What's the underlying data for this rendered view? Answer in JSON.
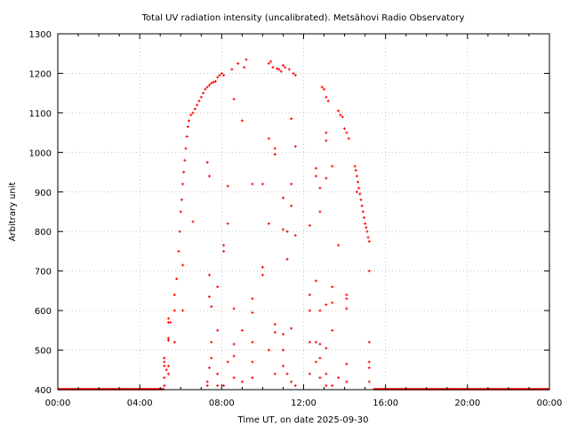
{
  "chart_data": {
    "type": "scatter",
    "title": "Total UV radiation intensity (uncalibrated). Metsähovi Radio Observatory",
    "xlabel": "Time UT, on date 2025-09-30",
    "ylabel": "Arbitrary unit",
    "xlim": [
      0,
      24
    ],
    "ylim": [
      400,
      1300
    ],
    "x_unit": "hours UT",
    "xticks": [
      0,
      4,
      8,
      12,
      16,
      20,
      24
    ],
    "xtick_labels": [
      "00:00",
      "04:00",
      "08:00",
      "12:00",
      "16:00",
      "20:00",
      "00:00"
    ],
    "yticks": [
      400,
      500,
      600,
      700,
      800,
      900,
      1000,
      1100,
      1200,
      1300
    ],
    "ytick_labels": [
      "400",
      "500",
      "600",
      "700",
      "800",
      "900",
      "1000",
      "1100",
      "1200",
      "1300"
    ],
    "grid": true,
    "color": "#ff0000",
    "baseline_segments": [
      [
        0,
        5.2,
        400
      ],
      [
        15.4,
        24,
        400
      ]
    ],
    "points": [
      [
        5.3,
        450
      ],
      [
        5.5,
        570
      ],
      [
        5.7,
        600
      ],
      [
        5.8,
        680
      ],
      [
        5.9,
        750
      ],
      [
        5.95,
        800
      ],
      [
        6.0,
        850
      ],
      [
        6.05,
        880
      ],
      [
        6.1,
        920
      ],
      [
        6.15,
        950
      ],
      [
        6.2,
        980
      ],
      [
        6.25,
        1010
      ],
      [
        6.3,
        1040
      ],
      [
        6.35,
        1065
      ],
      [
        6.4,
        1080
      ],
      [
        6.5,
        1095
      ],
      [
        6.6,
        1100
      ],
      [
        6.7,
        1110
      ],
      [
        6.8,
        1120
      ],
      [
        6.9,
        1130
      ],
      [
        7.0,
        1140
      ],
      [
        7.1,
        1150
      ],
      [
        7.2,
        1160
      ],
      [
        7.3,
        1165
      ],
      [
        7.4,
        1170
      ],
      [
        7.5,
        1175
      ],
      [
        7.6,
        1178
      ],
      [
        7.7,
        1180
      ],
      [
        7.8,
        1190
      ],
      [
        7.9,
        1195
      ],
      [
        8.0,
        1200
      ],
      [
        8.1,
        1195
      ],
      [
        8.5,
        1210
      ],
      [
        8.8,
        1225
      ],
      [
        9.2,
        1235
      ],
      [
        9.1,
        1215
      ],
      [
        10.3,
        1225
      ],
      [
        10.4,
        1230
      ],
      [
        10.5,
        1215
      ],
      [
        10.7,
        1212
      ],
      [
        10.8,
        1210
      ],
      [
        10.9,
        1205
      ],
      [
        11.0,
        1220
      ],
      [
        11.1,
        1215
      ],
      [
        11.3,
        1210
      ],
      [
        11.5,
        1200
      ],
      [
        11.6,
        1195
      ],
      [
        12.9,
        1165
      ],
      [
        13.0,
        1160
      ],
      [
        13.1,
        1140
      ],
      [
        13.2,
        1130
      ],
      [
        13.7,
        1105
      ],
      [
        13.8,
        1095
      ],
      [
        13.9,
        1090
      ],
      [
        14.0,
        1060
      ],
      [
        14.1,
        1050
      ],
      [
        14.2,
        1035
      ],
      [
        14.5,
        965
      ],
      [
        14.55,
        955
      ],
      [
        14.6,
        940
      ],
      [
        14.65,
        925
      ],
      [
        14.7,
        910
      ],
      [
        14.75,
        895
      ],
      [
        14.8,
        880
      ],
      [
        14.85,
        865
      ],
      [
        14.9,
        850
      ],
      [
        14.95,
        835
      ],
      [
        15.0,
        820
      ],
      [
        15.05,
        810
      ],
      [
        15.1,
        800
      ],
      [
        15.15,
        785
      ],
      [
        15.2,
        775
      ],
      [
        5.2,
        480
      ],
      [
        5.2,
        470
      ],
      [
        5.2,
        460
      ],
      [
        5.2,
        430
      ],
      [
        5.2,
        410
      ],
      [
        5.4,
        580
      ],
      [
        5.4,
        570
      ],
      [
        5.4,
        530
      ],
      [
        5.4,
        525
      ],
      [
        5.4,
        460
      ],
      [
        5.4,
        440
      ],
      [
        5.7,
        640
      ],
      [
        5.7,
        520
      ],
      [
        6.1,
        715
      ],
      [
        6.1,
        600
      ],
      [
        6.6,
        825
      ],
      [
        7.3,
        975
      ],
      [
        7.3,
        420
      ],
      [
        7.3,
        410
      ],
      [
        7.4,
        940
      ],
      [
        7.4,
        690
      ],
      [
        7.4,
        635
      ],
      [
        7.4,
        455
      ],
      [
        7.5,
        610
      ],
      [
        7.5,
        520
      ],
      [
        7.5,
        480
      ],
      [
        7.8,
        660
      ],
      [
        7.8,
        550
      ],
      [
        7.8,
        440
      ],
      [
        7.8,
        410
      ],
      [
        8.1,
        765
      ],
      [
        8.1,
        750
      ],
      [
        8.1,
        410
      ],
      [
        8.3,
        915
      ],
      [
        8.3,
        820
      ],
      [
        8.3,
        470
      ],
      [
        8.6,
        1135
      ],
      [
        8.6,
        605
      ],
      [
        8.6,
        485
      ],
      [
        8.6,
        515
      ],
      [
        8.6,
        430
      ],
      [
        9.0,
        1080
      ],
      [
        9.0,
        550
      ],
      [
        9.0,
        420
      ],
      [
        9.5,
        920
      ],
      [
        9.5,
        630
      ],
      [
        9.5,
        595
      ],
      [
        9.5,
        520
      ],
      [
        9.5,
        470
      ],
      [
        9.5,
        430
      ],
      [
        10.0,
        920
      ],
      [
        10.0,
        710
      ],
      [
        10.0,
        690
      ],
      [
        10.3,
        1035
      ],
      [
        10.3,
        820
      ],
      [
        10.3,
        500
      ],
      [
        10.6,
        1010
      ],
      [
        10.6,
        995
      ],
      [
        10.6,
        565
      ],
      [
        10.6,
        545
      ],
      [
        10.6,
        440
      ],
      [
        11.0,
        885
      ],
      [
        11.0,
        805
      ],
      [
        11.0,
        540
      ],
      [
        11.0,
        500
      ],
      [
        11.0,
        460
      ],
      [
        11.2,
        730
      ],
      [
        11.2,
        800
      ],
      [
        11.2,
        440
      ],
      [
        11.4,
        1085
      ],
      [
        11.4,
        920
      ],
      [
        11.4,
        865
      ],
      [
        11.4,
        555
      ],
      [
        11.4,
        420
      ],
      [
        11.6,
        1015
      ],
      [
        11.6,
        790
      ],
      [
        11.6,
        410
      ],
      [
        12.3,
        815
      ],
      [
        12.3,
        640
      ],
      [
        12.3,
        600
      ],
      [
        12.3,
        520
      ],
      [
        12.3,
        440
      ],
      [
        12.6,
        960
      ],
      [
        12.6,
        940
      ],
      [
        12.6,
        675
      ],
      [
        12.6,
        520
      ],
      [
        12.6,
        470
      ],
      [
        12.8,
        910
      ],
      [
        12.8,
        850
      ],
      [
        12.8,
        600
      ],
      [
        12.8,
        515
      ],
      [
        12.8,
        480
      ],
      [
        12.8,
        430
      ],
      [
        13.1,
        1050
      ],
      [
        13.1,
        1030
      ],
      [
        13.1,
        935
      ],
      [
        13.1,
        615
      ],
      [
        13.1,
        505
      ],
      [
        13.1,
        440
      ],
      [
        13.1,
        410
      ],
      [
        13.4,
        965
      ],
      [
        13.4,
        660
      ],
      [
        13.4,
        620
      ],
      [
        13.4,
        550
      ],
      [
        13.4,
        410
      ],
      [
        13.7,
        765
      ],
      [
        13.7,
        430
      ],
      [
        14.1,
        640
      ],
      [
        14.1,
        630
      ],
      [
        14.1,
        605
      ],
      [
        14.1,
        465
      ],
      [
        14.1,
        420
      ],
      [
        14.6,
        900
      ],
      [
        15.2,
        700
      ],
      [
        15.2,
        520
      ],
      [
        15.2,
        470
      ],
      [
        15.2,
        455
      ],
      [
        15.2,
        420
      ]
    ]
  }
}
